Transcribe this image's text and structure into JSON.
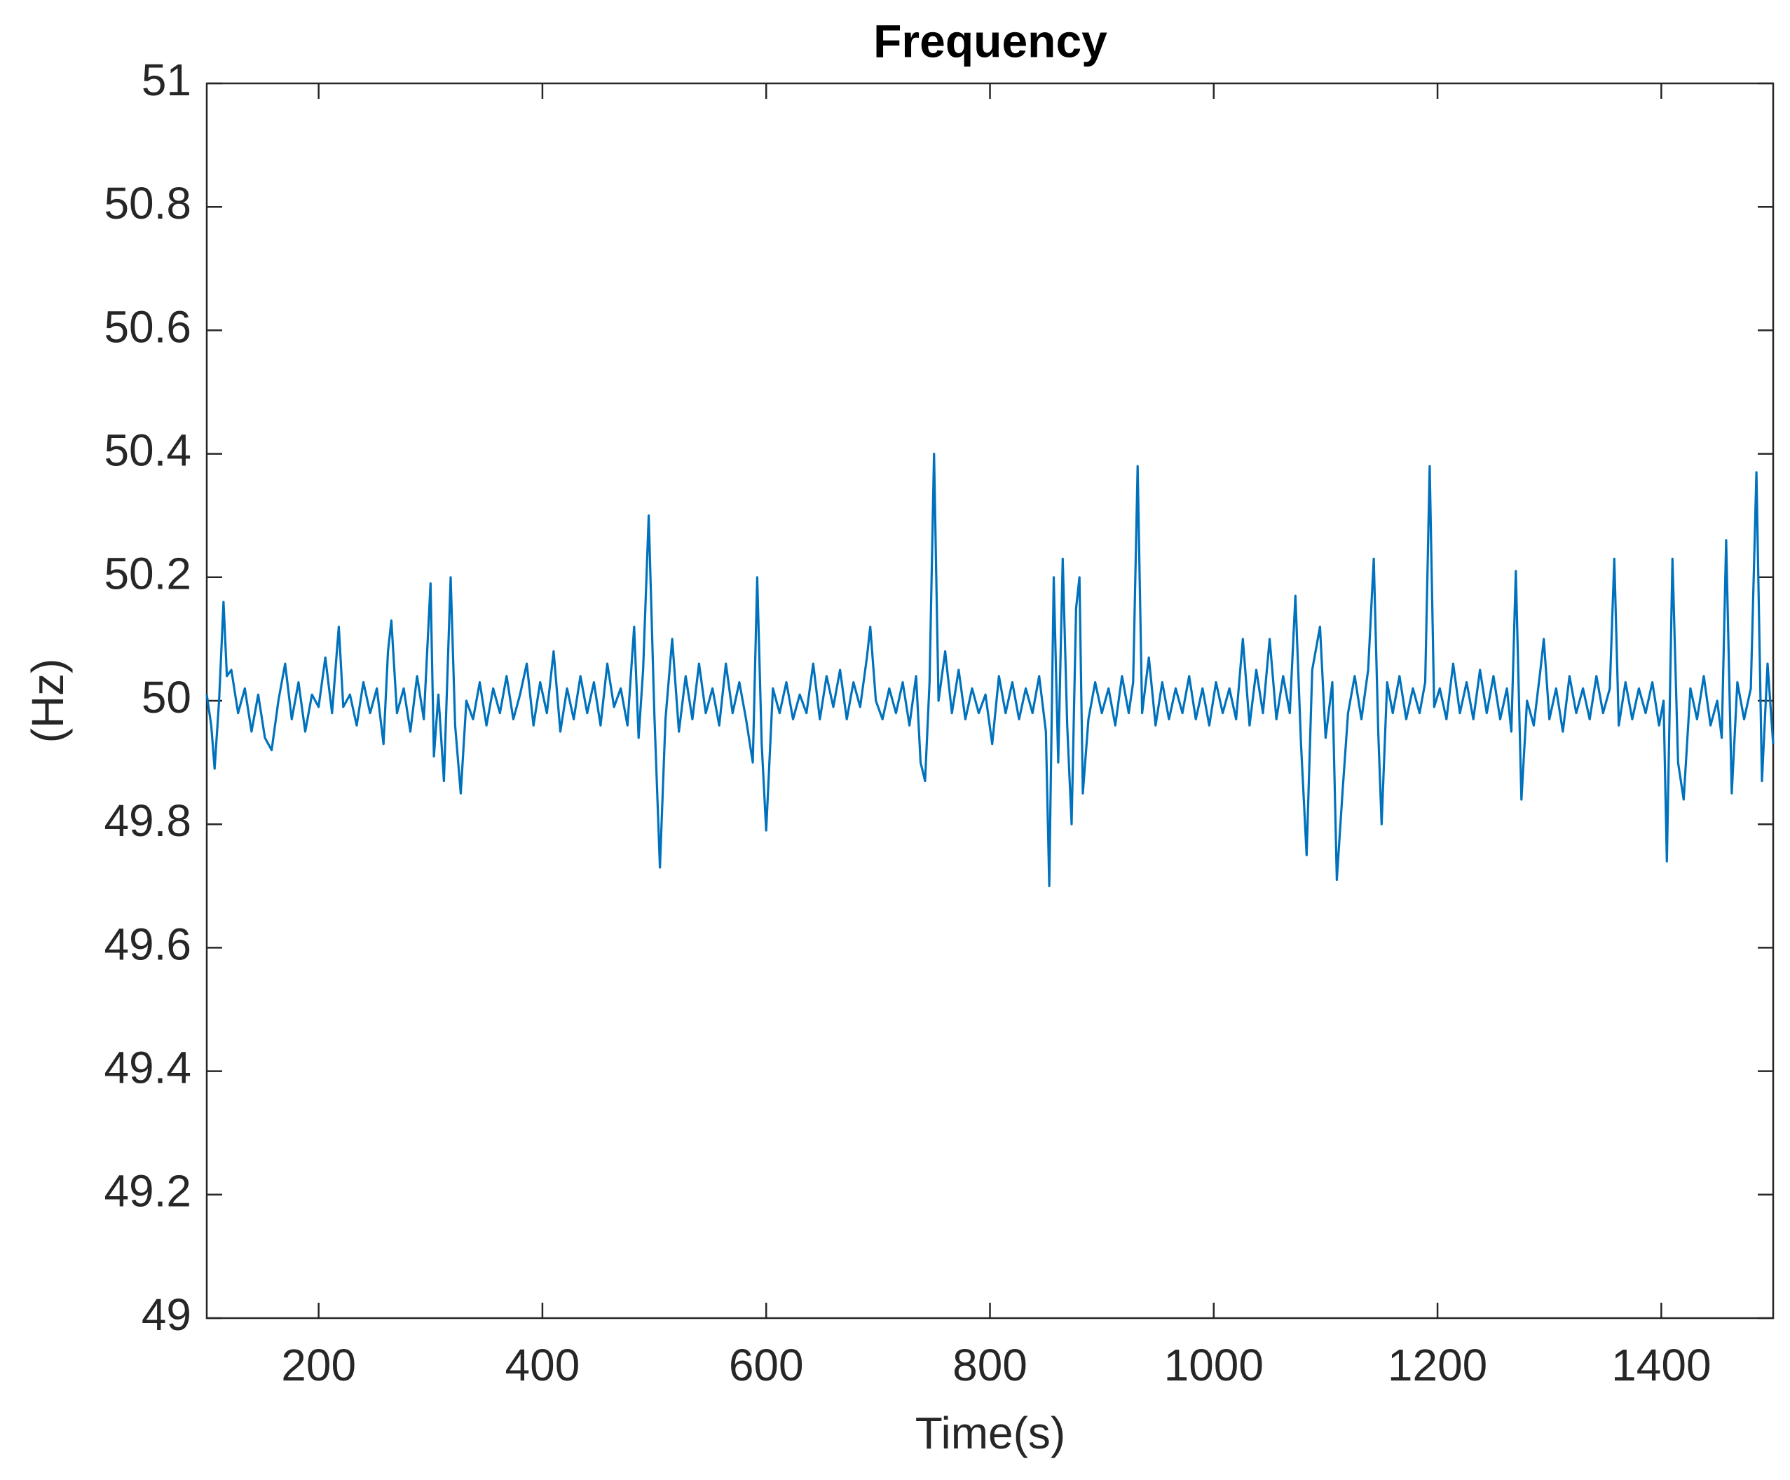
{
  "chart_data": {
    "type": "line",
    "title": "Frequency",
    "x_label": "Time(s)",
    "y_label": "(Hz)",
    "color": "#0072bd",
    "xlim": [
      100,
      1500
    ],
    "xticks": [
      200,
      400,
      600,
      800,
      1000,
      1200,
      1400
    ],
    "ylim": [
      49,
      51
    ],
    "yticks": [
      49,
      49.2,
      49.4,
      49.6,
      49.8,
      50,
      50.2,
      50.4,
      50.6,
      50.8,
      51
    ],
    "x": [
      100,
      104,
      107,
      111,
      115,
      118,
      122,
      128,
      134,
      140,
      146,
      152,
      158,
      164,
      170,
      176,
      182,
      188,
      194,
      200,
      206,
      212,
      218,
      222,
      228,
      234,
      240,
      246,
      252,
      258,
      262,
      265,
      270,
      276,
      282,
      288,
      294,
      300,
      303,
      307,
      312,
      318,
      322,
      327,
      332,
      338,
      344,
      350,
      356,
      362,
      368,
      374,
      380,
      386,
      392,
      398,
      404,
      410,
      416,
      422,
      428,
      434,
      440,
      446,
      452,
      458,
      464,
      470,
      476,
      482,
      486,
      490,
      495,
      500,
      505,
      510,
      516,
      522,
      528,
      534,
      540,
      546,
      552,
      558,
      564,
      570,
      576,
      582,
      588,
      592,
      596,
      600,
      606,
      612,
      618,
      624,
      630,
      636,
      642,
      648,
      654,
      660,
      666,
      672,
      678,
      684,
      690,
      693,
      698,
      704,
      710,
      716,
      722,
      728,
      734,
      738,
      742,
      746,
      750,
      754,
      760,
      766,
      772,
      778,
      784,
      790,
      796,
      802,
      808,
      814,
      820,
      826,
      832,
      838,
      844,
      850,
      853,
      857,
      861,
      865,
      869,
      873,
      877,
      880,
      883,
      888,
      894,
      900,
      906,
      912,
      918,
      924,
      928,
      932,
      936,
      942,
      948,
      954,
      960,
      966,
      972,
      978,
      984,
      990,
      996,
      1002,
      1008,
      1014,
      1020,
      1026,
      1032,
      1038,
      1044,
      1050,
      1056,
      1062,
      1068,
      1073,
      1078,
      1083,
      1088,
      1095,
      1100,
      1106,
      1110,
      1115,
      1120,
      1126,
      1132,
      1138,
      1143,
      1147,
      1150,
      1155,
      1160,
      1166,
      1172,
      1178,
      1184,
      1189,
      1193,
      1197,
      1202,
      1208,
      1214,
      1220,
      1226,
      1232,
      1238,
      1244,
      1250,
      1256,
      1262,
      1266,
      1270,
      1275,
      1280,
      1286,
      1292,
      1295,
      1300,
      1306,
      1312,
      1318,
      1324,
      1330,
      1336,
      1342,
      1348,
      1354,
      1358,
      1362,
      1368,
      1374,
      1380,
      1386,
      1392,
      1398,
      1402,
      1405,
      1410,
      1415,
      1420,
      1426,
      1432,
      1438,
      1444,
      1450,
      1454,
      1458,
      1463,
      1468,
      1474,
      1480,
      1485,
      1490,
      1495,
      1500
    ],
    "values": [
      50.01,
      49.96,
      49.89,
      50.0,
      50.16,
      50.04,
      50.05,
      49.98,
      50.02,
      49.95,
      50.01,
      49.94,
      49.92,
      50.0,
      50.06,
      49.97,
      50.03,
      49.95,
      50.01,
      49.99,
      50.07,
      49.98,
      50.12,
      49.99,
      50.01,
      49.96,
      50.03,
      49.98,
      50.02,
      49.93,
      50.08,
      50.13,
      49.98,
      50.02,
      49.95,
      50.04,
      49.97,
      50.19,
      49.91,
      50.01,
      49.87,
      50.2,
      49.96,
      49.85,
      50.0,
      49.97,
      50.03,
      49.96,
      50.02,
      49.98,
      50.04,
      49.97,
      50.01,
      50.06,
      49.96,
      50.03,
      49.98,
      50.08,
      49.95,
      50.02,
      49.97,
      50.04,
      49.98,
      50.03,
      49.96,
      50.06,
      49.99,
      50.02,
      49.96,
      50.12,
      49.94,
      50.05,
      50.3,
      49.98,
      49.73,
      49.97,
      50.1,
      49.95,
      50.04,
      49.97,
      50.06,
      49.98,
      50.02,
      49.96,
      50.06,
      49.98,
      50.03,
      49.97,
      49.9,
      50.2,
      49.93,
      49.79,
      50.02,
      49.98,
      50.03,
      49.97,
      50.01,
      49.98,
      50.06,
      49.97,
      50.04,
      49.99,
      50.05,
      49.97,
      50.03,
      49.99,
      50.07,
      50.12,
      50.0,
      49.97,
      50.02,
      49.98,
      50.03,
      49.96,
      50.04,
      49.9,
      49.87,
      50.03,
      50.4,
      50.0,
      50.08,
      49.98,
      50.05,
      49.97,
      50.02,
      49.98,
      50.01,
      49.93,
      50.04,
      49.98,
      50.03,
      49.97,
      50.02,
      49.98,
      50.04,
      49.95,
      49.7,
      50.2,
      49.9,
      50.23,
      49.96,
      49.8,
      50.15,
      50.2,
      49.85,
      49.97,
      50.03,
      49.98,
      50.02,
      49.96,
      50.04,
      49.98,
      50.03,
      50.38,
      49.98,
      50.07,
      49.96,
      50.03,
      49.97,
      50.02,
      49.98,
      50.04,
      49.97,
      50.02,
      49.96,
      50.03,
      49.98,
      50.02,
      49.97,
      50.1,
      49.96,
      50.05,
      49.98,
      50.1,
      49.97,
      50.04,
      49.98,
      50.17,
      49.93,
      49.75,
      50.05,
      50.12,
      49.94,
      50.03,
      49.71,
      49.85,
      49.98,
      50.04,
      49.97,
      50.05,
      50.23,
      49.95,
      49.8,
      50.03,
      49.98,
      50.04,
      49.97,
      50.02,
      49.98,
      50.03,
      50.38,
      49.99,
      50.02,
      49.97,
      50.06,
      49.98,
      50.03,
      49.97,
      50.05,
      49.98,
      50.04,
      49.97,
      50.02,
      49.95,
      50.21,
      49.84,
      50.0,
      49.96,
      50.05,
      50.1,
      49.97,
      50.02,
      49.95,
      50.04,
      49.98,
      50.02,
      49.97,
      50.04,
      49.98,
      50.02,
      50.23,
      49.96,
      50.03,
      49.97,
      50.02,
      49.98,
      50.03,
      49.96,
      50.0,
      49.74,
      50.23,
      49.9,
      49.84,
      50.02,
      49.97,
      50.04,
      49.96,
      50.0,
      49.94,
      50.26,
      49.85,
      50.03,
      49.97,
      50.02,
      50.37,
      49.87,
      50.06,
      49.93
    ]
  }
}
